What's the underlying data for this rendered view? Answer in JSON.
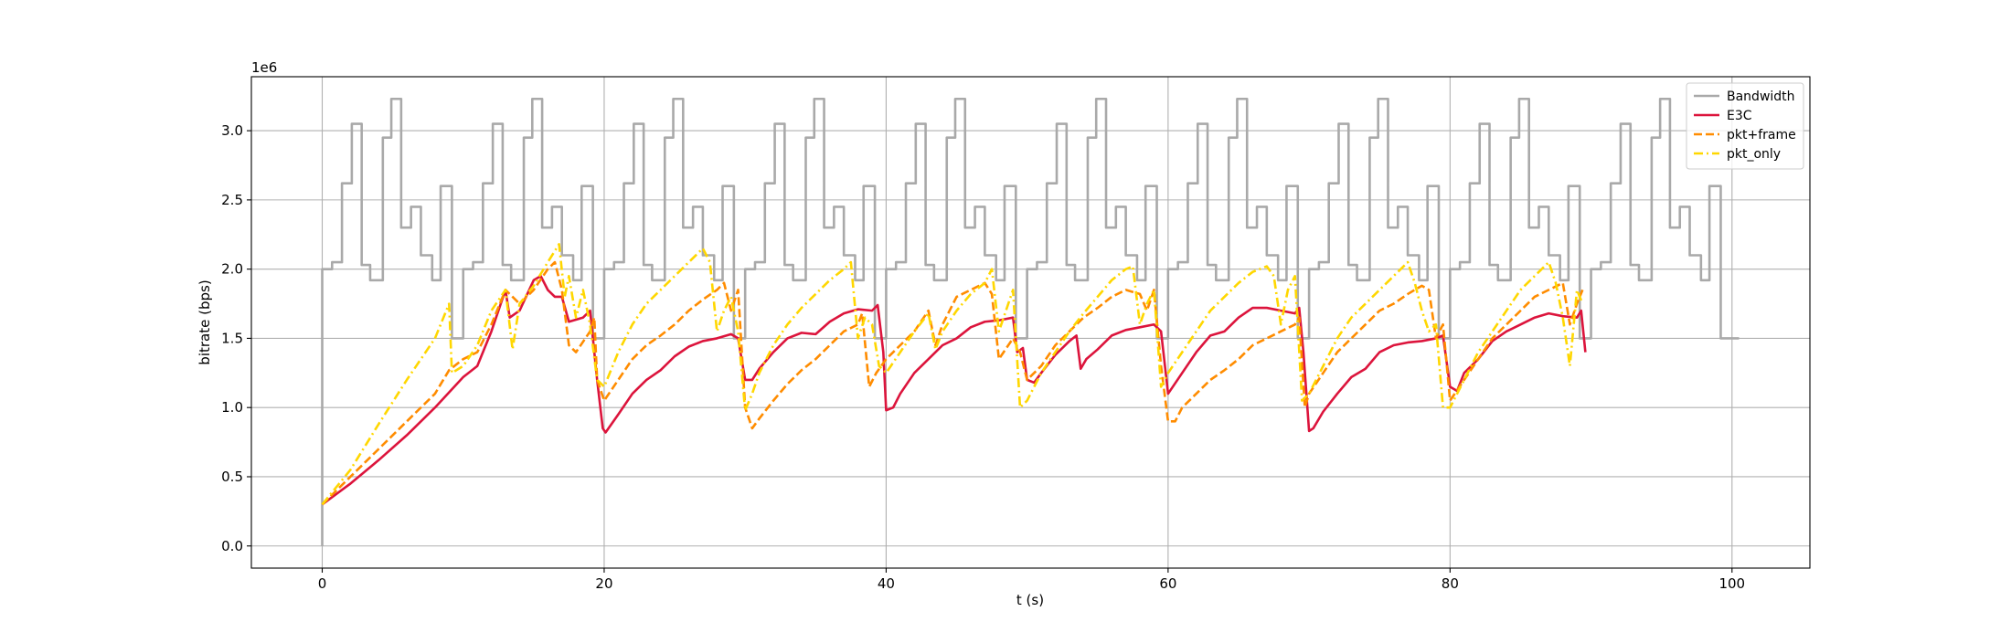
{
  "chart_data": {
    "type": "line",
    "x_label": "t (s)",
    "y_label": "bitrate (bps)",
    "y_offset_label": "1e6",
    "xlim": [
      -5.025,
      105.525
    ],
    "ylim": [
      -0.16,
      3.39
    ],
    "xticks": [
      0,
      20,
      40,
      60,
      80,
      100
    ],
    "yticks": [
      {
        "value": 0,
        "label": "0.0"
      },
      {
        "value": 0.5,
        "label": "0.5"
      },
      {
        "value": 1,
        "label": "1.0"
      },
      {
        "value": 1.5,
        "label": "1.5"
      },
      {
        "value": 2,
        "label": "2.0"
      },
      {
        "value": 2.5,
        "label": "2.5"
      },
      {
        "value": 3,
        "label": "3.0"
      }
    ],
    "grid": true,
    "legend": "upper right",
    "series": [
      {
        "name": "Bandwidth",
        "color": "#a9a9a9",
        "linestyle": "solid",
        "drawstyle": "steps-post",
        "x": [
          0,
          0,
          0.7,
          1.4,
          2.1,
          2.8,
          3.4,
          4.3,
          4.9,
          5.6,
          6.3,
          7,
          7.8,
          8.4,
          9.2,
          10,
          10.7,
          11.4,
          12.1,
          12.8,
          13.4,
          14.3,
          14.9,
          15.6,
          16.3,
          17,
          17.8,
          18.4,
          19.2,
          20,
          20.7,
          21.4,
          22.1,
          22.8,
          23.4,
          24.3,
          24.9,
          25.6,
          26.3,
          27,
          27.8,
          28.4,
          29.2,
          30,
          30.7,
          31.4,
          32.1,
          32.8,
          33.4,
          34.3,
          34.9,
          35.6,
          36.3,
          37,
          37.8,
          38.4,
          39.2,
          40,
          40.7,
          41.4,
          42.1,
          42.8,
          43.4,
          44.3,
          44.9,
          45.6,
          46.3,
          47,
          47.8,
          48.4,
          49.2,
          50,
          50.7,
          51.4,
          52.1,
          52.8,
          53.4,
          54.3,
          54.9,
          55.6,
          56.3,
          57,
          57.8,
          58.4,
          59.2,
          60,
          60.7,
          61.4,
          62.1,
          62.8,
          63.4,
          64.3,
          64.9,
          65.6,
          66.3,
          67,
          67.8,
          68.4,
          69.2,
          70,
          70.7,
          71.4,
          72.1,
          72.8,
          73.4,
          74.3,
          74.9,
          75.6,
          76.3,
          77,
          77.8,
          78.4,
          79.2,
          80,
          80.7,
          81.4,
          82.1,
          82.8,
          83.4,
          84.3,
          84.9,
          85.6,
          86.3,
          87,
          87.8,
          88.4,
          89.2,
          90,
          90.7,
          91.4,
          92.1,
          92.8,
          93.4,
          94.3,
          94.9,
          95.6,
          96.3,
          97,
          97.8,
          98.4,
          99.2,
          100.5
        ],
        "values": [
          0,
          2,
          2.05,
          2.62,
          3.05,
          2.03,
          1.92,
          2.95,
          3.23,
          2.3,
          2.45,
          2.1,
          1.92,
          2.6,
          1.5,
          2,
          2.05,
          2.62,
          3.05,
          2.03,
          1.92,
          2.95,
          3.23,
          2.3,
          2.45,
          2.1,
          1.92,
          2.6,
          1.5,
          2,
          2.05,
          2.62,
          3.05,
          2.03,
          1.92,
          2.95,
          3.23,
          2.3,
          2.45,
          2.1,
          1.92,
          2.6,
          1.5,
          2,
          2.05,
          2.62,
          3.05,
          2.03,
          1.92,
          2.95,
          3.23,
          2.3,
          2.45,
          2.1,
          1.92,
          2.6,
          1.5,
          2,
          2.05,
          2.62,
          3.05,
          2.03,
          1.92,
          2.95,
          3.23,
          2.3,
          2.45,
          2.1,
          1.92,
          2.6,
          1.5,
          2,
          2.05,
          2.62,
          3.05,
          2.03,
          1.92,
          2.95,
          3.23,
          2.3,
          2.45,
          2.1,
          1.92,
          2.6,
          1.5,
          2,
          2.05,
          2.62,
          3.05,
          2.03,
          1.92,
          2.95,
          3.23,
          2.3,
          2.45,
          2.1,
          1.92,
          2.6,
          1.5,
          2,
          2.05,
          2.62,
          3.05,
          2.03,
          1.92,
          2.95,
          3.23,
          2.3,
          2.45,
          2.1,
          1.92,
          2.6,
          1.5,
          2,
          2.05,
          2.62,
          3.05,
          2.03,
          1.92,
          2.95,
          3.23,
          2.3,
          2.45,
          2.1,
          1.92,
          2.6,
          1.5,
          2,
          2.05,
          2.62,
          3.05,
          2.03,
          1.92,
          2.95,
          3.23,
          2.3,
          2.45,
          2.1,
          1.92,
          2.6,
          1.5,
          1.5
        ]
      },
      {
        "name": "E3C",
        "color": "#dc143c",
        "linestyle": "solid",
        "x": [
          0,
          2,
          4,
          6,
          8,
          10,
          11,
          12,
          13,
          13.3,
          14,
          15,
          15.5,
          16,
          16.5,
          17,
          17.5,
          18.5,
          19,
          19.5,
          19.9,
          20.1,
          21,
          22,
          23,
          24,
          25,
          26,
          27,
          28,
          29,
          29.5,
          30,
          30.5,
          31,
          32,
          33,
          34,
          35,
          36,
          37,
          38,
          39,
          39.4,
          39.8,
          40,
          40.5,
          41,
          42,
          43,
          44,
          45,
          46,
          47,
          48,
          49,
          49.3,
          49.7,
          50,
          50.5,
          51,
          52,
          53,
          53.5,
          53.8,
          54.2,
          55,
          56,
          57,
          58,
          59,
          59.5,
          60,
          61,
          62,
          63,
          64,
          65,
          66,
          67,
          68,
          69,
          69.3,
          69.6,
          70,
          70.3,
          71,
          72,
          73,
          74,
          75,
          76,
          77,
          78,
          79,
          79.5,
          80,
          80.5,
          81,
          82,
          83,
          84,
          85,
          86,
          87,
          88,
          89,
          89.3,
          89.6
        ],
        "values": [
          0.3,
          0.45,
          0.62,
          0.8,
          1,
          1.22,
          1.3,
          1.55,
          1.85,
          1.65,
          1.7,
          1.92,
          1.95,
          1.85,
          1.8,
          1.8,
          1.62,
          1.65,
          1.7,
          1.2,
          0.85,
          0.82,
          0.95,
          1.1,
          1.2,
          1.27,
          1.37,
          1.44,
          1.48,
          1.5,
          1.53,
          1.5,
          1.2,
          1.2,
          1.28,
          1.4,
          1.5,
          1.54,
          1.53,
          1.62,
          1.68,
          1.71,
          1.7,
          1.74,
          1.4,
          0.98,
          1,
          1.1,
          1.25,
          1.35,
          1.45,
          1.5,
          1.58,
          1.62,
          1.63,
          1.65,
          1.4,
          1.43,
          1.2,
          1.18,
          1.25,
          1.38,
          1.48,
          1.52,
          1.28,
          1.35,
          1.42,
          1.52,
          1.56,
          1.58,
          1.6,
          1.55,
          1.1,
          1.25,
          1.4,
          1.52,
          1.55,
          1.65,
          1.72,
          1.72,
          1.7,
          1.68,
          1.72,
          1.4,
          0.83,
          0.85,
          0.97,
          1.1,
          1.22,
          1.28,
          1.4,
          1.45,
          1.47,
          1.48,
          1.5,
          1.52,
          1.15,
          1.12,
          1.25,
          1.35,
          1.48,
          1.55,
          1.6,
          1.65,
          1.68,
          1.66,
          1.65,
          1.7,
          1.4
        ]
      },
      {
        "name": "pkt+frame",
        "color": "#ff8c00",
        "linestyle": "dashed",
        "x": [
          0,
          2,
          4,
          6,
          8,
          9,
          10,
          11,
          12,
          13,
          14,
          15,
          16,
          16.5,
          17,
          17.5,
          18,
          19,
          19.3,
          19.5,
          20,
          21,
          22,
          23,
          24,
          25,
          26,
          27,
          28,
          28.5,
          29,
          29.5,
          30,
          30.5,
          31,
          32,
          33,
          34,
          35,
          36,
          37,
          38,
          38.3,
          38.8,
          39.3,
          40,
          41,
          42,
          43,
          43.5,
          44,
          45,
          46,
          47,
          47.5,
          48,
          49,
          49.5,
          50,
          51,
          52,
          53,
          54,
          55,
          56,
          57,
          58,
          58.5,
          59,
          59.5,
          60,
          60.5,
          61,
          62,
          63,
          64,
          65,
          66,
          67,
          68,
          69,
          69.3,
          69.7,
          70,
          71,
          72,
          73,
          74,
          75,
          76,
          77,
          78,
          78.5,
          79,
          79.5,
          80,
          81,
          82,
          83,
          84,
          85,
          86,
          87,
          88,
          88.5,
          89,
          89.4
        ],
        "values": [
          0.3,
          0.5,
          0.7,
          0.9,
          1.1,
          1.27,
          1.35,
          1.4,
          1.6,
          1.85,
          1.75,
          1.85,
          2,
          2.05,
          1.85,
          1.45,
          1.4,
          1.55,
          1.65,
          1.2,
          1.05,
          1.2,
          1.35,
          1.45,
          1.52,
          1.6,
          1.7,
          1.78,
          1.85,
          1.9,
          1.7,
          1.85,
          1,
          0.85,
          0.92,
          1.05,
          1.17,
          1.27,
          1.35,
          1.45,
          1.55,
          1.6,
          1.68,
          1.15,
          1.25,
          1.35,
          1.45,
          1.55,
          1.7,
          1.45,
          1.6,
          1.8,
          1.85,
          1.9,
          1.82,
          1.35,
          1.5,
          1.4,
          1.2,
          1.3,
          1.45,
          1.55,
          1.65,
          1.72,
          1.8,
          1.85,
          1.82,
          1.7,
          1.85,
          1.3,
          0.9,
          0.9,
          1,
          1.1,
          1.2,
          1.27,
          1.35,
          1.45,
          1.5,
          1.55,
          1.6,
          1.65,
          1,
          1.1,
          1.25,
          1.4,
          1.5,
          1.6,
          1.7,
          1.75,
          1.82,
          1.88,
          1.85,
          1.5,
          1.6,
          1.05,
          1.2,
          1.35,
          1.5,
          1.6,
          1.7,
          1.8,
          1.85,
          1.9,
          1.6,
          1.75,
          1.85
        ]
      },
      {
        "name": "pkt_only",
        "color": "#ffd700",
        "linestyle": "dashdot",
        "x": [
          0,
          2,
          4,
          6,
          8,
          9,
          9.2,
          10,
          11,
          12,
          13,
          13.5,
          14,
          15,
          16,
          16.8,
          17.2,
          17.5,
          18,
          18.5,
          19,
          19.5,
          20,
          21,
          22,
          23,
          24,
          25,
          26,
          27,
          27.5,
          28,
          28.5,
          29,
          29.5,
          30,
          30.5,
          31,
          32,
          33,
          34,
          35,
          36,
          37,
          37.5,
          38,
          38.5,
          39,
          39.5,
          40,
          41,
          42,
          43,
          43.5,
          44,
          45,
          46,
          47,
          47.5,
          48,
          48.5,
          49,
          49.5,
          50,
          51,
          52,
          53,
          54,
          55,
          56,
          57,
          57.5,
          58,
          58.5,
          59,
          59.5,
          60,
          61,
          62,
          63,
          64,
          65,
          66,
          67,
          67.5,
          68,
          68.5,
          69,
          69.5,
          70,
          71,
          72,
          73,
          74,
          75,
          76,
          77,
          77.5,
          78,
          78.5,
          79,
          79.5,
          80,
          81,
          82,
          83,
          84,
          85,
          86,
          87,
          87.5,
          88,
          88.5,
          89,
          89.4
        ],
        "values": [
          0.3,
          0.55,
          0.88,
          1.2,
          1.5,
          1.75,
          1.25,
          1.3,
          1.45,
          1.7,
          1.85,
          1.42,
          1.75,
          1.88,
          2.05,
          2.18,
          1.8,
          1.95,
          1.65,
          1.85,
          1.6,
          1.2,
          1.15,
          1.4,
          1.6,
          1.75,
          1.85,
          1.95,
          2.05,
          2.15,
          2.05,
          1.55,
          1.7,
          1.8,
          1.55,
          0.98,
          1.1,
          1.25,
          1.45,
          1.6,
          1.72,
          1.82,
          1.92,
          2,
          2.05,
          1.5,
          1.65,
          1.6,
          1.3,
          1.25,
          1.4,
          1.55,
          1.68,
          1.42,
          1.55,
          1.7,
          1.82,
          1.9,
          2,
          1.55,
          1.7,
          1.85,
          1,
          1.05,
          1.25,
          1.4,
          1.55,
          1.68,
          1.8,
          1.92,
          2,
          2.02,
          1.6,
          1.75,
          1.85,
          1.15,
          1.25,
          1.4,
          1.55,
          1.7,
          1.8,
          1.9,
          1.98,
          2.02,
          1.95,
          1.6,
          1.85,
          1.95,
          1.05,
          1.1,
          1.3,
          1.5,
          1.65,
          1.75,
          1.85,
          1.95,
          2.05,
          1.9,
          1.7,
          1.55,
          1.6,
          1,
          1,
          1.2,
          1.4,
          1.55,
          1.7,
          1.85,
          1.95,
          2.05,
          1.9,
          1.65,
          1.3,
          1.85,
          1.75
        ]
      }
    ]
  }
}
